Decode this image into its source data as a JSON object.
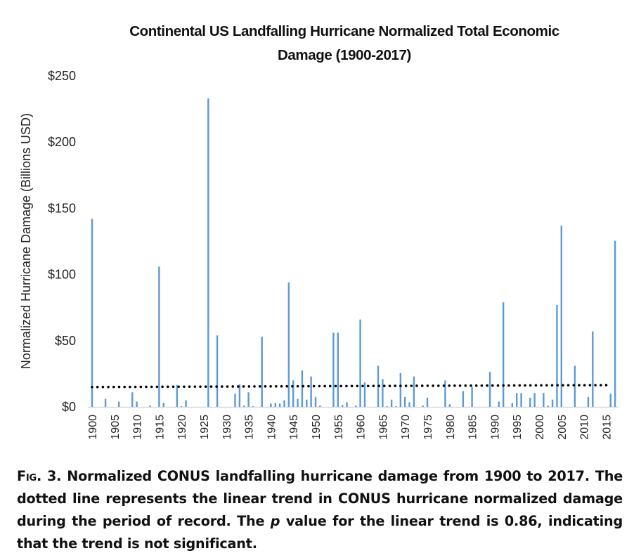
{
  "chart_data": {
    "type": "bar",
    "title": "Continental US Landfalling Hurricane Normalized Total Economic Damage  (1900-2017)",
    "title_lines": [
      "Continental US Landfalling Hurricane Normalized Total Economic",
      "Damage  (1900-2017)"
    ],
    "xlabel": "",
    "ylabel": "Normalized Hurricane Damage (Billions USD)",
    "ylim": [
      0,
      250
    ],
    "xlim": [
      1900,
      2017
    ],
    "yticks": [
      0,
      50,
      100,
      150,
      200,
      250
    ],
    "ytick_labels": [
      "$0",
      "$50",
      "$100",
      "$150",
      "$200",
      "$250"
    ],
    "xticks": [
      1900,
      1905,
      1910,
      1915,
      1920,
      1925,
      1930,
      1935,
      1940,
      1945,
      1950,
      1955,
      1960,
      1965,
      1970,
      1975,
      1980,
      1985,
      1990,
      1995,
      2000,
      2005,
      2010,
      2015
    ],
    "xtick_labels": [
      "1900",
      "1905",
      "1910",
      "1915",
      "1920",
      "1925",
      "1930",
      "1935",
      "1940",
      "1945",
      "1950",
      "1955",
      "1960",
      "1965",
      "1970",
      "1975",
      "1980",
      "1985",
      "1990",
      "1995",
      "2000",
      "2005",
      "2010",
      "2015"
    ],
    "grid": false,
    "legend": "none",
    "bar_color": "#5B9BD5",
    "trend_color": "#000000",
    "series": [
      {
        "name": "Normalized damage",
        "x": [
          1900,
          1903,
          1906,
          1909,
          1910,
          1913,
          1915,
          1916,
          1919,
          1920,
          1921,
          1926,
          1928,
          1932,
          1933,
          1934,
          1935,
          1936,
          1938,
          1940,
          1941,
          1942,
          1943,
          1944,
          1945,
          1946,
          1947,
          1948,
          1949,
          1950,
          1951,
          1954,
          1955,
          1956,
          1957,
          1959,
          1960,
          1961,
          1964,
          1965,
          1966,
          1967,
          1968,
          1969,
          1970,
          1971,
          1972,
          1974,
          1975,
          1979,
          1980,
          1983,
          1985,
          1989,
          1991,
          1992,
          1994,
          1995,
          1996,
          1998,
          1999,
          2001,
          2002,
          2003,
          2004,
          2005,
          2008,
          2011,
          2012,
          2016,
          2017
        ],
        "values": [
          142,
          6,
          4,
          11,
          4,
          1,
          106,
          3,
          16.5,
          0.5,
          5,
          233,
          54,
          10,
          17,
          1,
          11,
          0.5,
          53,
          2.5,
          3,
          2.5,
          5,
          94,
          20,
          6,
          27.5,
          5.5,
          23,
          7.5,
          1,
          56,
          56,
          1.5,
          3.5,
          1,
          66,
          18.5,
          31,
          21,
          0.5,
          5.5,
          0.5,
          25.5,
          7.5,
          3.5,
          23,
          1,
          7,
          20,
          2,
          12,
          15,
          26.5,
          4,
          79,
          3,
          10.5,
          10.5,
          7,
          10.5,
          10.5,
          1,
          5.5,
          77,
          137,
          31,
          7.5,
          57,
          10,
          125.5
        ]
      }
    ],
    "trend": {
      "name": "Linear trend",
      "style": "dotted",
      "x": [
        1900,
        2017
      ],
      "y": [
        15,
        16.5
      ]
    }
  },
  "caption": {
    "fig_label": "Fig. 3.",
    "text_before_p": " Normalized CONUS landfalling hurricane damage from 1900 to 2017. The dotted line represents the linear trend in CONUS hurricane normalized damage during the period of record. The ",
    "p_symbol": "p",
    "text_after_p": " value for the linear trend is 0.86, indicating that the trend is not significant."
  }
}
